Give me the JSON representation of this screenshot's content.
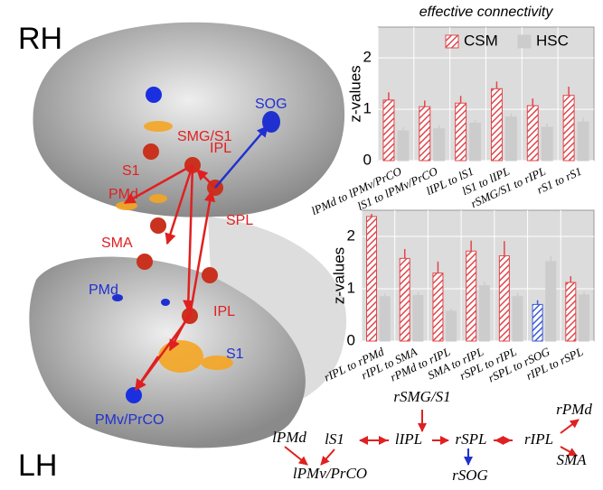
{
  "brain": {
    "hemispheres": [
      "RH",
      "LH"
    ],
    "labels": [
      {
        "text": "SMG/S1",
        "color": "#e02020"
      },
      {
        "text": "SOG",
        "color": "#2030d0"
      },
      {
        "text": "IPL",
        "color": "#e02020"
      },
      {
        "text": "S1",
        "color": "#e02020"
      },
      {
        "text": "PMd",
        "color": "#e02020"
      },
      {
        "text": "SPL",
        "color": "#e02020"
      },
      {
        "text": "SMA",
        "color": "#e02020"
      },
      {
        "text": "PMd",
        "color": "#2030d0"
      },
      {
        "text": "IPL",
        "color": "#e02020"
      },
      {
        "text": "S1",
        "color": "#2030d0"
      },
      {
        "text": "PMv/PrCO",
        "color": "#2030d0"
      }
    ]
  },
  "chart_data": [
    {
      "type": "bar",
      "title": "effective connectivity",
      "y_label": "z-values",
      "legend": "top",
      "grid": true,
      "categories": [
        "lPMd to lPMv/PrCO",
        "lS1 to lPMv/PrCO",
        "lIPL to lS1",
        "lS1 to lIPL",
        "rSMG/S1 to rIPL",
        "rS1 to rS1"
      ],
      "series": [
        {
          "name": "CSM",
          "color": "#e0474c",
          "hatch": true,
          "values": [
            1.18,
            1.05,
            1.12,
            1.4,
            1.07,
            1.27
          ],
          "errors": [
            0.15,
            0.12,
            0.14,
            0.14,
            0.14,
            0.17
          ]
        },
        {
          "name": "HSC",
          "color": "#cccccc",
          "hatch": false,
          "values": [
            0.58,
            0.62,
            0.73,
            0.85,
            0.65,
            0.75
          ],
          "errors": [
            0.07,
            0.07,
            0.06,
            0.07,
            0.07,
            0.08
          ]
        }
      ],
      "ylim": [
        0,
        2.6
      ],
      "yticks": [
        0,
        1,
        2
      ]
    },
    {
      "type": "bar",
      "y_label": "z-values",
      "grid": true,
      "categories": [
        "rIPL to rPMd",
        "rIPL to SMA",
        "rPMd to rIPL",
        "SMA to rIPL",
        "rSPL to rIPL",
        "rSPL to rSOG",
        "rIPL to rSPL"
      ],
      "series": [
        {
          "name": "CSM",
          "color": "#e0474c",
          "colors": [
            "#e0474c",
            "#e0474c",
            "#e0474c",
            "#e0474c",
            "#e0474c",
            "#3b5bd6",
            "#e0474c"
          ],
          "hatch": true,
          "values": [
            2.38,
            1.58,
            1.3,
            1.72,
            1.63,
            0.7,
            1.12
          ],
          "errors": [
            0.05,
            0.18,
            0.22,
            0.2,
            0.28,
            0.08,
            0.12
          ]
        },
        {
          "name": "HSC",
          "color": "#cccccc",
          "hatch": false,
          "values": [
            0.85,
            0.87,
            0.57,
            1.06,
            0.85,
            1.52,
            0.88
          ],
          "errors": [
            0.06,
            0.07,
            0.05,
            0.08,
            0.07,
            0.1,
            0.06
          ]
        }
      ],
      "ylim": [
        0,
        2.5
      ],
      "yticks": [
        0,
        1,
        2
      ]
    }
  ],
  "diagram": {
    "nodes": [
      "rSMG/S1",
      "lPMd",
      "lS1",
      "lIPL",
      "rSPL",
      "rIPL",
      "rPMd",
      "SMA",
      "rSOG",
      "lPMv/PrCO"
    ]
  }
}
